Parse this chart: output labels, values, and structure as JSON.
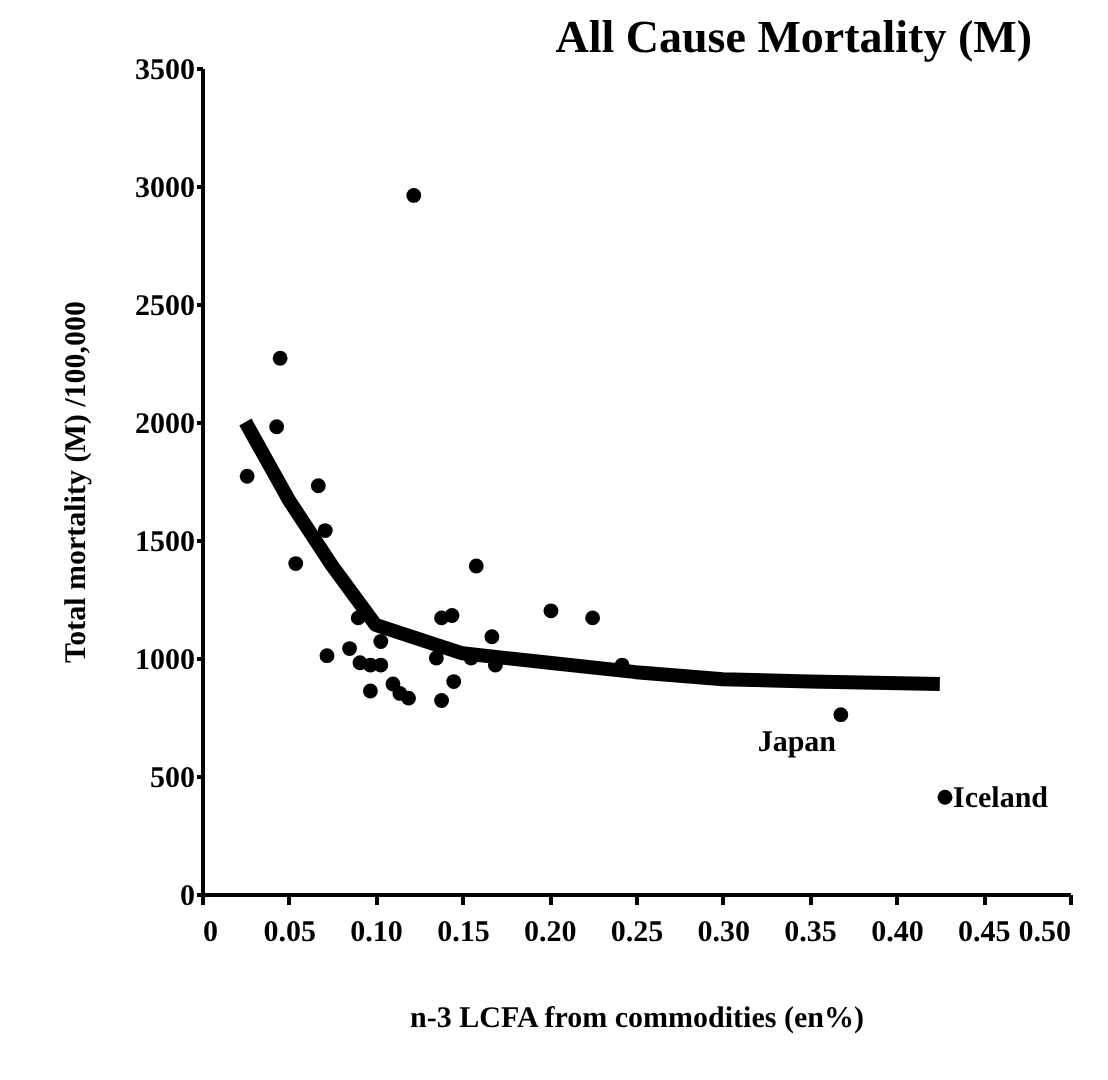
{
  "chart_data": {
    "type": "scatter",
    "title": "All Cause Mortality (M)",
    "xlabel": "n-3 LCFA from commodities (en%)",
    "ylabel": "Total mortality (M) /100,000",
    "series": [
      {
        "color": "#000000",
        "marker": "circle",
        "x": [
          0.026,
          0.045,
          0.043,
          0.067,
          0.071,
          0.054,
          0.072,
          0.09,
          0.085,
          0.091,
          0.097,
          0.103,
          0.103,
          0.097,
          0.11,
          0.114,
          0.119,
          0.138,
          0.135,
          0.138,
          0.144,
          0.145,
          0.158,
          0.167,
          0.155,
          0.169,
          0.201,
          0.225,
          0.242,
          0.368,
          0.428,
          0.122
        ],
        "values": [
          1770,
          2270,
          1980,
          1730,
          1540,
          1400,
          1010,
          1170,
          1040,
          980,
          970,
          1070,
          970,
          860,
          890,
          850,
          830,
          820,
          1000,
          1170,
          1180,
          900,
          1390,
          1090,
          1000,
          970,
          1200,
          1170,
          970,
          760,
          410,
          2960
        ]
      },
      {
        "type": "line",
        "color": "#000000",
        "marker": "none",
        "x": [
          0.025,
          0.05,
          0.075,
          0.1,
          0.125,
          0.15,
          0.2,
          0.25,
          0.3,
          0.35,
          0.425
        ],
        "values": [
          2000,
          1670,
          1390,
          1140,
          1080,
          1020,
          980,
          940,
          910,
          900,
          890
        ]
      }
    ],
    "annotations": [
      {
        "text": "Japan",
        "x": 0.368,
        "y": 760
      },
      {
        "text": "Iceland",
        "x": 0.428,
        "y": 410
      }
    ],
    "xlim": [
      0,
      0.5
    ],
    "xticks": [
      0,
      0.05,
      {
        "value": 0.1,
        "label": "0.10"
      },
      0.15,
      {
        "value": 0.2,
        "label": "0.20"
      },
      0.25,
      {
        "value": 0.3,
        "label": "0.30"
      },
      0.35,
      {
        "value": 0.4,
        "label": "0.40"
      },
      0.45,
      {
        "value": 0.5,
        "label": "0.50"
      }
    ],
    "ylim": [
      0,
      3500
    ],
    "yticks": [
      0,
      500,
      1000,
      1500,
      2000,
      2500,
      3000,
      3500
    ],
    "grid": false
  }
}
